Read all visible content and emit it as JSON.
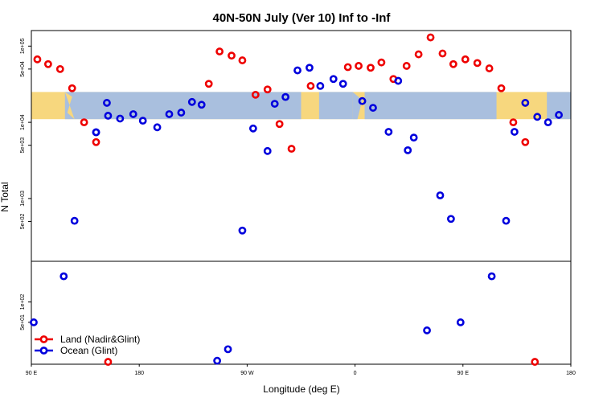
{
  "chart_data": {
    "type": "scatter",
    "title": "40N-50N July (Ver 10)   Inf to -Inf",
    "xlabel": "Longitude (deg E)",
    "ylabel": "N Total",
    "x_ticks": [
      {
        "value": 90,
        "label": "90 E"
      },
      {
        "value": 180,
        "label": "180"
      },
      {
        "value": 270,
        "label": "90 W"
      },
      {
        "value": 360,
        "label": "0"
      },
      {
        "value": 450,
        "label": "90 E"
      },
      {
        "value": 540,
        "label": "180"
      }
    ],
    "xlim": [
      90,
      540
    ],
    "upper_panel": {
      "scale": "log",
      "ylim": [
        150,
        160000
      ],
      "band_ylim": [
        11000,
        25000
      ],
      "y_ticks": [
        {
          "value": 500,
          "label": "5e+02"
        },
        {
          "value": 1000,
          "label": "1e+03"
        },
        {
          "value": 5000,
          "label": "5e+03"
        },
        {
          "value": 10000,
          "label": "1e+04"
        },
        {
          "value": 50000,
          "label": "5e+04"
        },
        {
          "value": 100000,
          "label": "1e+05"
        }
      ]
    },
    "lower_panel": {
      "scale": "log",
      "ylim": [
        12,
        400
      ],
      "y_ticks": [
        {
          "value": 50,
          "label": "5e+01"
        },
        {
          "value": 100,
          "label": "1e+02"
        }
      ]
    },
    "legend": {
      "position": "bottom-left"
    },
    "series": [
      {
        "name": "Land (Nadir&Glint)",
        "color": "#ee0000",
        "upper": [
          {
            "x": 95,
            "y": 67000
          },
          {
            "x": 104,
            "y": 58000
          },
          {
            "x": 114,
            "y": 50000
          },
          {
            "x": 124,
            "y": 28000
          },
          {
            "x": 134,
            "y": 10000
          },
          {
            "x": 144,
            "y": 5500
          },
          {
            "x": 238,
            "y": 32000
          },
          {
            "x": 247,
            "y": 85000
          },
          {
            "x": 257,
            "y": 75000
          },
          {
            "x": 266,
            "y": 65000
          },
          {
            "x": 277,
            "y": 23000
          },
          {
            "x": 287,
            "y": 27000
          },
          {
            "x": 297,
            "y": 9500
          },
          {
            "x": 307,
            "y": 4500
          },
          {
            "x": 323,
            "y": 30000
          },
          {
            "x": 354,
            "y": 53000
          },
          {
            "x": 363,
            "y": 55000
          },
          {
            "x": 373,
            "y": 52000
          },
          {
            "x": 382,
            "y": 61000
          },
          {
            "x": 392,
            "y": 37000
          },
          {
            "x": 403,
            "y": 55000
          },
          {
            "x": 413,
            "y": 78000
          },
          {
            "x": 423,
            "y": 130000
          },
          {
            "x": 433,
            "y": 80000
          },
          {
            "x": 442,
            "y": 58000
          },
          {
            "x": 452,
            "y": 67000
          },
          {
            "x": 462,
            "y": 60000
          },
          {
            "x": 472,
            "y": 51000
          },
          {
            "x": 482,
            "y": 28000
          },
          {
            "x": 492,
            "y": 10000
          },
          {
            "x": 502,
            "y": 5500
          }
        ],
        "lower": [
          {
            "x": 154,
            "y": 13
          },
          {
            "x": 510,
            "y": 13
          }
        ]
      },
      {
        "name": "Ocean (Glint)",
        "color": "#0000dd",
        "upper": [
          {
            "x": 126,
            "y": 510
          },
          {
            "x": 144,
            "y": 7400
          },
          {
            "x": 144,
            "y": 7400
          },
          {
            "x": 153,
            "y": 18000
          },
          {
            "x": 154,
            "y": 12200
          },
          {
            "x": 164,
            "y": 11200
          },
          {
            "x": 175,
            "y": 12800
          },
          {
            "x": 183,
            "y": 10500
          },
          {
            "x": 195,
            "y": 8600
          },
          {
            "x": 205,
            "y": 12800
          },
          {
            "x": 215,
            "y": 13400
          },
          {
            "x": 224,
            "y": 18500
          },
          {
            "x": 232,
            "y": 17000
          },
          {
            "x": 266,
            "y": 380
          },
          {
            "x": 275,
            "y": 8300
          },
          {
            "x": 287,
            "y": 4200
          },
          {
            "x": 293,
            "y": 17500
          },
          {
            "x": 302,
            "y": 21500
          },
          {
            "x": 312,
            "y": 48000
          },
          {
            "x": 322,
            "y": 52000
          },
          {
            "x": 331,
            "y": 30000
          },
          {
            "x": 342,
            "y": 37000
          },
          {
            "x": 350,
            "y": 32000
          },
          {
            "x": 366,
            "y": 19000
          },
          {
            "x": 375,
            "y": 15500
          },
          {
            "x": 388,
            "y": 7500
          },
          {
            "x": 396,
            "y": 35000
          },
          {
            "x": 404,
            "y": 4300
          },
          {
            "x": 409,
            "y": 6300
          },
          {
            "x": 431,
            "y": 1100
          },
          {
            "x": 440,
            "y": 540
          },
          {
            "x": 486,
            "y": 510
          },
          {
            "x": 493,
            "y": 7500
          },
          {
            "x": 502,
            "y": 18000
          },
          {
            "x": 512,
            "y": 11800
          },
          {
            "x": 521,
            "y": 10000
          },
          {
            "x": 530,
            "y": 12500
          }
        ],
        "lower": [
          {
            "x": 92,
            "y": 50
          },
          {
            "x": 117,
            "y": 240
          },
          {
            "x": 245,
            "y": 13.5
          },
          {
            "x": 254,
            "y": 20
          },
          {
            "x": 420,
            "y": 38
          },
          {
            "x": 448,
            "y": 50
          },
          {
            "x": 474,
            "y": 240
          }
        ]
      }
    ]
  }
}
